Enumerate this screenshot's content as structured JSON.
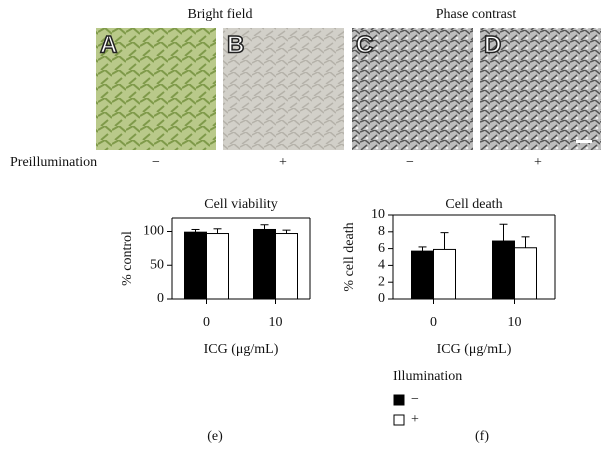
{
  "figure": {
    "headings": [
      "Bright field",
      "Phase contrast"
    ],
    "panel_letters": [
      "A",
      "B",
      "C",
      "D"
    ],
    "row_label": "Preillumination",
    "row_signs": [
      "−",
      "+",
      "−",
      "+"
    ],
    "legend_title": "Illumination",
    "captions": [
      "(e)",
      "(f)"
    ]
  },
  "chart_data": [
    {
      "type": "bar",
      "title": "Cell viability",
      "ylabel": "% control",
      "xlabel": "ICG (μg/mL)",
      "categories": [
        "0",
        "10"
      ],
      "series": [
        {
          "name": "−",
          "color": "#000000",
          "values": [
            99,
            103
          ],
          "errors": [
            4,
            7
          ]
        },
        {
          "name": "+",
          "color": "#ffffff",
          "values": [
            97,
            97
          ],
          "errors": [
            7,
            5
          ]
        }
      ],
      "ylim": [
        0,
        120
      ],
      "yticks": [
        0,
        50,
        100
      ]
    },
    {
      "type": "bar",
      "title": "Cell death",
      "ylabel": "% cell death",
      "xlabel": "ICG (μg/mL)",
      "categories": [
        "0",
        "10"
      ],
      "series": [
        {
          "name": "−",
          "color": "#000000",
          "values": [
            5.7,
            6.9
          ],
          "errors": [
            0.5,
            2.0
          ]
        },
        {
          "name": "+",
          "color": "#ffffff",
          "values": [
            5.9,
            6.1
          ],
          "errors": [
            2.0,
            1.3
          ]
        }
      ],
      "ylim": [
        0,
        10
      ],
      "yticks": [
        0,
        2,
        4,
        6,
        8,
        10
      ]
    }
  ]
}
